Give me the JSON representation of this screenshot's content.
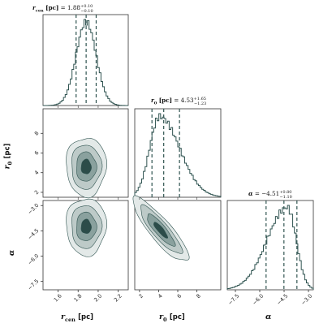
{
  "chart_data": {
    "type": "corner",
    "parameters": [
      {
        "key": "r_cen",
        "symbol": "r",
        "symbol_sub": "cen",
        "unit": "[pc]",
        "median": 1.88,
        "err_plus": 0.1,
        "err_minus": 0.1,
        "title_value": "1.88",
        "title_plus": "+0.10",
        "title_minus": "−0.10",
        "range": [
          1.45,
          2.3
        ],
        "ticks": [
          1.6,
          1.8,
          2.0,
          2.2
        ],
        "tick_labels": [
          "1.6",
          "1.8",
          "2.0",
          "2.2"
        ],
        "q16": 1.78,
        "q84": 1.98
      },
      {
        "key": "r_0",
        "symbol": "r",
        "symbol_sub": "0",
        "unit": "[pc]",
        "median": 4.53,
        "err_plus": 1.65,
        "err_minus": 1.23,
        "title_value": "4.53",
        "title_plus": "+1.65",
        "title_minus": "−1.23",
        "range": [
          1.5,
          10.5
        ],
        "ticks": [
          2,
          4,
          6,
          8
        ],
        "tick_labels": [
          "2",
          "4",
          "6",
          "8"
        ],
        "q16": 3.3,
        "q84": 6.18
      },
      {
        "key": "alpha",
        "symbol": "α",
        "symbol_sub": "",
        "unit": "",
        "median": -4.51,
        "err_plus": 0.8,
        "err_minus": 1.1,
        "title_value": "−4.51",
        "title_plus": "+0.80",
        "title_minus": "−1.10",
        "range": [
          -8.0,
          -2.7
        ],
        "ticks": [
          -7.5,
          -6.0,
          -4.5,
          -3.0
        ],
        "tick_labels": [
          "−7.5",
          "−6.0",
          "−4.5",
          "−3.0"
        ],
        "q16": -5.61,
        "q84": -3.71
      }
    ],
    "histograms": [
      {
        "param": "r_cen",
        "shape": "gaussian",
        "center": 1.88,
        "sigma": 0.1
      },
      {
        "param": "r_0",
        "shape": "skewed",
        "center": 4.1,
        "sigma_left": 1.05,
        "sigma_right": 2.1
      },
      {
        "param": "alpha",
        "shape": "skewed",
        "center": -4.3,
        "sigma_left": 1.25,
        "sigma_right": 0.55
      }
    ],
    "contours": [
      {
        "x": "r_cen",
        "y": "r_0",
        "center": [
          1.88,
          4.6
        ],
        "sigma": [
          0.1,
          1.5
        ],
        "rho": 0.0
      },
      {
        "x": "r_cen",
        "y": "alpha",
        "center": [
          1.88,
          -4.25
        ],
        "sigma": [
          0.1,
          0.85
        ],
        "rho": 0.0
      },
      {
        "x": "r_0",
        "y": "alpha",
        "center": [
          4.2,
          -4.45
        ],
        "sigma": [
          1.45,
          0.95
        ],
        "rho": -0.87
      }
    ],
    "levels": [
      0.5,
      1.0,
      1.5,
      2.0
    ],
    "colors": {
      "line": "#2f5350",
      "fill_levels": [
        "#e3e9e8",
        "#bdcac8",
        "#8aa19e",
        "#2c4c49"
      ],
      "axis": "#333333"
    },
    "grid": false
  }
}
